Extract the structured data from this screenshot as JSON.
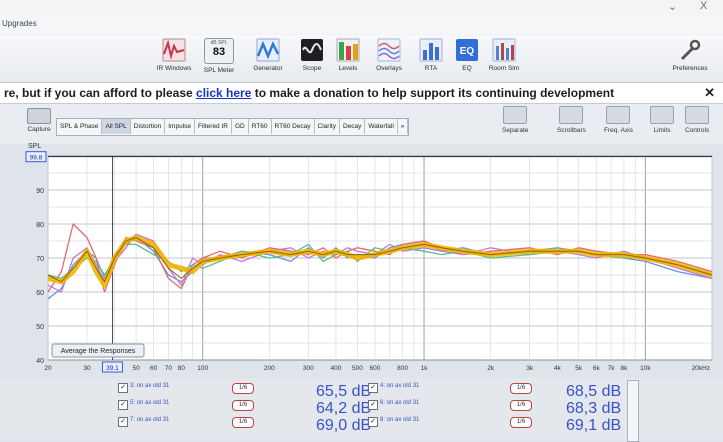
{
  "menu": {
    "upgrades": "Upgrades",
    "close": "X"
  },
  "toolbar": [
    {
      "label": "IR Windows",
      "icon": "ir-windows-icon",
      "color": "#c8344c"
    },
    {
      "label": "SPL Meter",
      "icon": "spl-meter-icon",
      "small": "dB SPL",
      "value": "83"
    },
    {
      "label": "Generator",
      "icon": "generator-icon",
      "color": "#2f7ad4"
    },
    {
      "label": "Scope",
      "icon": "scope-icon",
      "color": "#222222"
    },
    {
      "label": "Levels",
      "icon": "levels-icon",
      "color": "#d64040"
    },
    {
      "label": "Overlays",
      "icon": "overlays-icon",
      "color": "#5f86d6"
    },
    {
      "label": "RTA",
      "icon": "rta-icon",
      "color": "#3b6fd4"
    },
    {
      "label": "EQ",
      "icon": "eq-icon",
      "text": "EQ",
      "color": "#2f6fd6"
    },
    {
      "label": "Room Sim",
      "icon": "room-sim-icon",
      "color": "#5580cc"
    },
    {
      "label": "Preferences",
      "icon": "preferences-icon",
      "color": "#555555"
    }
  ],
  "donate": {
    "before": "re, but if you can afford to please ",
    "link": "click here",
    "after": " to make a donation to help support its continuing development",
    "close": "✕"
  },
  "capture": "Capture",
  "tabs": [
    "SPL & Phase",
    "All SPL",
    "Distortion",
    "Impulse",
    "Filtered IR",
    "GD",
    "RT60",
    "RT60 Decay",
    "Clarity",
    "Decay",
    "Waterfall",
    "»"
  ],
  "active_tab": "All SPL",
  "right_tools": [
    "Separate",
    "Scrollbars",
    "Freq. Axis",
    "Limits",
    "Controls"
  ],
  "spl_label": "SPL",
  "average_button": "Average the Responses",
  "chart_data": {
    "type": "line",
    "ylabel": "SPL",
    "ylim": [
      40,
      100
    ],
    "xlim": [
      20,
      20000
    ],
    "x_scale": "log",
    "cursor_y": "99.8",
    "cursor_x": "39.1",
    "y_ticks": [
      "90",
      "80",
      "70",
      "60",
      "50",
      "40"
    ],
    "x_ticks": [
      "20",
      "30",
      "50",
      "60",
      "70",
      "80",
      "100",
      "200",
      "300",
      "400",
      "500",
      "600",
      "800",
      "1k",
      "2k",
      "3k",
      "4k",
      "5k",
      "6k",
      "7k",
      "8k",
      "10k",
      "20kHz"
    ],
    "x": [
      20,
      23,
      26,
      30,
      33,
      36,
      40,
      45,
      50,
      60,
      70,
      80,
      90,
      100,
      120,
      150,
      200,
      250,
      300,
      350,
      400,
      450,
      500,
      600,
      700,
      800,
      1000,
      1200,
      1500,
      2000,
      3000,
      4000,
      5000,
      6000,
      8000,
      10000,
      14000,
      20000
    ],
    "series": [
      {
        "values": [
          64,
          63,
          66,
          72,
          66,
          62,
          70,
          75,
          76,
          74,
          68,
          67,
          66,
          69,
          70,
          71,
          72,
          71,
          72,
          71,
          72,
          71,
          70,
          71,
          72,
          73,
          74,
          73,
          72,
          71,
          72,
          72,
          72,
          71,
          71,
          70,
          68,
          65
        ],
        "color": "#f2b300",
        "width": 5
      },
      {
        "values": [
          58,
          61,
          68,
          72,
          70,
          64,
          71,
          74,
          76,
          72,
          65,
          63,
          66,
          70,
          70,
          72,
          71,
          69,
          73,
          70,
          73,
          70,
          71,
          70,
          73,
          74,
          75,
          72,
          73,
          71,
          72,
          73,
          72,
          71,
          70,
          69,
          66,
          64
        ],
        "color": "#6c8ee6",
        "width": 1.3
      },
      {
        "values": [
          60,
          66,
          80,
          76,
          70,
          60,
          68,
          76,
          75,
          73,
          64,
          61,
          68,
          70,
          72,
          70,
          73,
          72,
          71,
          73,
          70,
          72,
          73,
          72,
          71,
          74,
          75,
          73,
          71,
          72,
          73,
          71,
          73,
          72,
          71,
          71,
          69,
          66
        ],
        "color": "#e36b6b",
        "width": 1.3
      },
      {
        "values": [
          62,
          60,
          70,
          73,
          68,
          63,
          69,
          73,
          77,
          75,
          67,
          62,
          70,
          68,
          71,
          69,
          72,
          73,
          70,
          72,
          71,
          73,
          72,
          71,
          74,
          72,
          73,
          72,
          71,
          73,
          71,
          72,
          71,
          70,
          72,
          70,
          67,
          64
        ],
        "color": "#c07ad6",
        "width": 1.3
      },
      {
        "values": [
          65,
          64,
          67,
          70,
          69,
          65,
          70,
          74,
          74,
          71,
          69,
          66,
          68,
          67,
          69,
          72,
          70,
          71,
          74,
          69,
          71,
          72,
          69,
          73,
          72,
          73,
          72,
          71,
          72,
          70,
          71,
          72,
          72,
          71,
          70,
          70,
          68,
          65
        ],
        "color": "#5bbd8a",
        "width": 1.3
      }
    ],
    "average_line": {
      "values": [
        65,
        63,
        67,
        72,
        67,
        63,
        70,
        75,
        76,
        73,
        67,
        64,
        67,
        69,
        70,
        71,
        72,
        71,
        72,
        71,
        72,
        71,
        71,
        71,
        72,
        73,
        74,
        73,
        72,
        71,
        72,
        72,
        72,
        71,
        71,
        70,
        68,
        65
      ],
      "color": "#8a6a00"
    }
  },
  "legend": [
    {
      "name": "3: on ax old 31",
      "value": "65,5 dB",
      "tag": "1/6"
    },
    {
      "name": "4: on ax old 31",
      "value": "68,5 dB",
      "tag": "1/6"
    },
    {
      "name": "5: on ax old 31",
      "value": "64,2 dB",
      "tag": "1/6"
    },
    {
      "name": "6: on ax old 31",
      "value": "68,3 dB",
      "tag": "1/6"
    },
    {
      "name": "7: on ax old 31",
      "value": "69,0 dB",
      "tag": "1/6"
    },
    {
      "name": "8: on ax old 31",
      "value": "69,1 dB",
      "tag": "1/6"
    }
  ]
}
